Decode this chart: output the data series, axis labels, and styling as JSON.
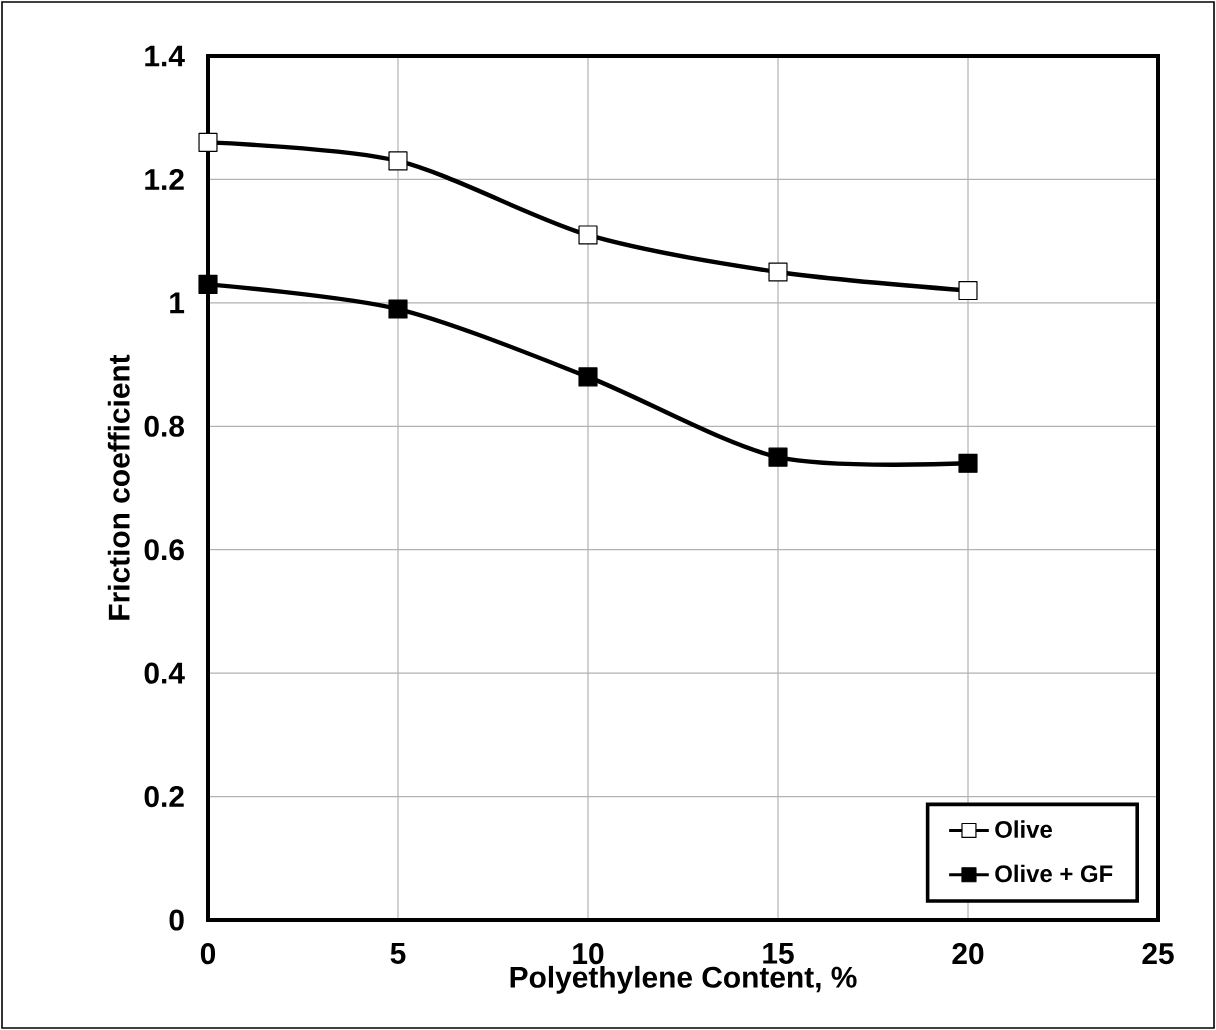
{
  "chart_data": {
    "type": "line",
    "xlabel": "Polyethylene Content, %",
    "ylabel": "Friction coefficient",
    "x": [
      0,
      5,
      10,
      15,
      20
    ],
    "series": [
      {
        "name": "Olive",
        "color": "#000000",
        "values": [
          1.26,
          1.23,
          1.11,
          1.05,
          1.02
        ]
      },
      {
        "name": "Olive + GF",
        "color": "#000000",
        "values": [
          1.03,
          0.99,
          0.88,
          0.75,
          0.74
        ]
      }
    ],
    "xlim": [
      0,
      25
    ],
    "xticks": [
      0,
      5,
      10,
      15,
      20,
      25
    ],
    "ylim": [
      0,
      1.4
    ],
    "yticks": [
      0,
      0.2,
      0.4,
      0.6,
      0.8,
      1,
      1.2,
      1.4
    ],
    "grid": true,
    "legend": "bottom right",
    "marker": "square",
    "line_style": "solid"
  }
}
